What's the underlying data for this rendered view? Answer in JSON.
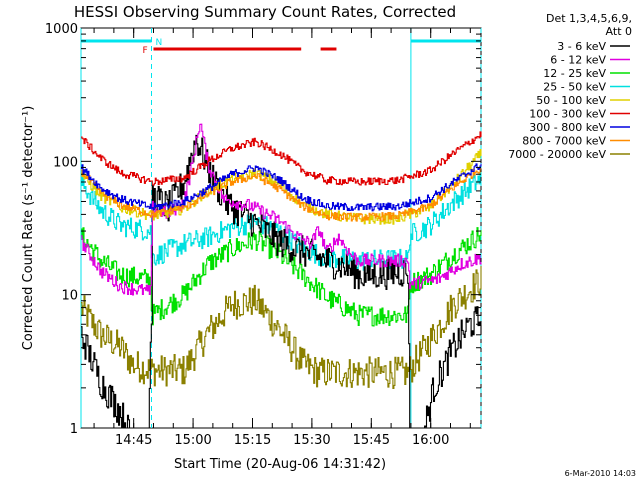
{
  "chart_data": {
    "type": "line",
    "title": "HESSI Observing Summary Count Rates, Corrected",
    "xlabel": "Start Time (20-Aug-06 14:31:42)",
    "ylabel": "Corrected Count Rate (s⁻¹ detector⁻¹)",
    "x_unit": "minutes after 14:31:42",
    "xlim": [
      0,
      101
    ],
    "ylim": [
      1,
      1000
    ],
    "y_scale": "log",
    "x_ticks": [
      {
        "label": "14:45",
        "value": 13.3
      },
      {
        "label": "15:00",
        "value": 28.3
      },
      {
        "label": "15:15",
        "value": 43.3
      },
      {
        "label": "15:30",
        "value": 58.3
      },
      {
        "label": "15:45",
        "value": 73.3
      },
      {
        "label": "16:00",
        "value": 88.3
      }
    ],
    "y_ticks": [
      {
        "label": "1",
        "value": 1
      },
      {
        "label": "10",
        "value": 10
      },
      {
        "label": "100",
        "value": 100
      },
      {
        "label": "1000",
        "value": 1000
      }
    ],
    "legend_header": [
      "Det 1,3,4,5,6,9,",
      "Att 0"
    ],
    "legend_position": "right",
    "date_stamp": "6-Mar-2010 14:03",
    "flags": {
      "N_label": "N",
      "F_label": "F",
      "N_segments": [
        [
          0,
          17.8
        ],
        [
          83.3,
          101
        ]
      ],
      "F_segments": [
        [
          18.3,
          55.6
        ],
        [
          60.5,
          64.5
        ]
      ],
      "N_color": "#00e5ee",
      "F_color": "#e00000"
    },
    "night_boundaries": [
      {
        "x": 0,
        "style": "solid"
      },
      {
        "x": 17.8,
        "style": "dashed"
      },
      {
        "x": 83.3,
        "style": "solid"
      },
      {
        "x": 101,
        "style": "dashed"
      }
    ],
    "series": [
      {
        "name": "3 - 6 keV",
        "color": "#000000",
        "noise": 0.12,
        "points": [
          [
            0,
            5
          ],
          [
            5,
            2.2
          ],
          [
            10,
            1.3
          ],
          [
            13,
            0.8
          ],
          [
            17,
            0.8
          ],
          [
            17.8,
            8
          ],
          [
            18,
            55
          ],
          [
            22,
            45
          ],
          [
            26,
            70
          ],
          [
            29,
            150
          ],
          [
            33,
            75
          ],
          [
            37,
            48
          ],
          [
            43,
            36
          ],
          [
            50,
            25
          ],
          [
            56,
            21
          ],
          [
            62,
            18
          ],
          [
            67,
            16
          ],
          [
            70,
            14
          ],
          [
            73,
            14
          ],
          [
            82.5,
            15
          ],
          [
            83,
            0.8
          ],
          [
            86,
            0.8
          ],
          [
            89,
            2
          ],
          [
            94,
            4
          ],
          [
            98,
            6
          ],
          [
            101,
            6.5
          ]
        ]
      },
      {
        "name": "6 - 12 keV",
        "color": "#e000e0",
        "noise": 0.05,
        "points": [
          [
            0,
            25
          ],
          [
            5,
            15
          ],
          [
            10,
            11.5
          ],
          [
            17.5,
            10.5
          ],
          [
            18,
            45
          ],
          [
            22,
            40
          ],
          [
            26,
            50
          ],
          [
            28,
            95
          ],
          [
            30,
            200
          ],
          [
            32,
            95
          ],
          [
            36,
            52
          ],
          [
            43,
            46
          ],
          [
            50,
            36
          ],
          [
            54,
            28
          ],
          [
            58,
            24
          ],
          [
            60,
            31
          ],
          [
            62,
            21
          ],
          [
            65,
            27
          ],
          [
            68,
            20
          ],
          [
            70,
            18
          ],
          [
            82.5,
            18
          ],
          [
            83,
            12
          ],
          [
            90,
            13
          ],
          [
            96,
            17
          ],
          [
            101,
            19
          ]
        ]
      },
      {
        "name": "12 - 25 keV",
        "color": "#00e000",
        "noise": 0.08,
        "points": [
          [
            0,
            28
          ],
          [
            5,
            18
          ],
          [
            10,
            14
          ],
          [
            17.5,
            13
          ],
          [
            17.8,
            7
          ],
          [
            26,
            10
          ],
          [
            32,
            17
          ],
          [
            38,
            22
          ],
          [
            44,
            26
          ],
          [
            50,
            20
          ],
          [
            56,
            14
          ],
          [
            62,
            9.5
          ],
          [
            70,
            7
          ],
          [
            82.5,
            7
          ],
          [
            83,
            12
          ],
          [
            88,
            14
          ],
          [
            94,
            20
          ],
          [
            101,
            29
          ]
        ]
      },
      {
        "name": "25 - 50 keV",
        "color": "#00e0e0",
        "noise": 0.08,
        "points": [
          [
            0,
            70
          ],
          [
            5,
            43
          ],
          [
            10,
            33
          ],
          [
            17.5,
            30
          ],
          [
            17.8,
            19
          ],
          [
            26,
            24
          ],
          [
            32,
            27
          ],
          [
            38,
            32
          ],
          [
            44,
            35
          ],
          [
            50,
            30
          ],
          [
            56,
            22
          ],
          [
            62,
            19
          ],
          [
            70,
            18
          ],
          [
            82.5,
            18.5
          ],
          [
            83,
            28
          ],
          [
            88,
            33
          ],
          [
            94,
            50
          ],
          [
            101,
            75
          ]
        ]
      },
      {
        "name": "50 - 100 keV",
        "color": "#e0d000",
        "noise": 0.04,
        "points": [
          [
            0,
            80
          ],
          [
            5,
            55
          ],
          [
            10,
            45
          ],
          [
            18,
            39
          ],
          [
            26,
            44
          ],
          [
            32,
            60
          ],
          [
            38,
            74
          ],
          [
            44,
            82
          ],
          [
            50,
            67
          ],
          [
            56,
            47
          ],
          [
            62,
            40
          ],
          [
            70,
            37
          ],
          [
            80,
            37
          ],
          [
            88,
            45
          ],
          [
            94,
            68
          ],
          [
            101,
            115
          ]
        ]
      },
      {
        "name": "100 - 300 keV",
        "color": "#e00000",
        "noise": 0.03,
        "points": [
          [
            0,
            150
          ],
          [
            5,
            105
          ],
          [
            10,
            82
          ],
          [
            18,
            70
          ],
          [
            26,
            75
          ],
          [
            32,
            100
          ],
          [
            38,
            125
          ],
          [
            44,
            140
          ],
          [
            50,
            115
          ],
          [
            56,
            85
          ],
          [
            62,
            72
          ],
          [
            70,
            70
          ],
          [
            80,
            72
          ],
          [
            88,
            85
          ],
          [
            94,
            115
          ],
          [
            101,
            160
          ]
        ]
      },
      {
        "name": "300 - 800 keV",
        "color": "#0000e0",
        "noise": 0.03,
        "points": [
          [
            0,
            90
          ],
          [
            5,
            63
          ],
          [
            10,
            52
          ],
          [
            18,
            45
          ],
          [
            26,
            50
          ],
          [
            32,
            62
          ],
          [
            38,
            80
          ],
          [
            44,
            90
          ],
          [
            50,
            73
          ],
          [
            56,
            53
          ],
          [
            62,
            46
          ],
          [
            70,
            45
          ],
          [
            80,
            46
          ],
          [
            88,
            53
          ],
          [
            94,
            70
          ],
          [
            101,
            95
          ]
        ]
      },
      {
        "name": "800 - 7000 keV",
        "color": "#ff8c00",
        "noise": 0.03,
        "points": [
          [
            0,
            85
          ],
          [
            5,
            58
          ],
          [
            10,
            47
          ],
          [
            18,
            40
          ],
          [
            26,
            45
          ],
          [
            32,
            57
          ],
          [
            38,
            70
          ],
          [
            44,
            78
          ],
          [
            50,
            62
          ],
          [
            56,
            46
          ],
          [
            62,
            39
          ],
          [
            70,
            38
          ],
          [
            80,
            39
          ],
          [
            88,
            46
          ],
          [
            94,
            64
          ],
          [
            101,
            90
          ]
        ]
      },
      {
        "name": "7000 - 20000 keV",
        "color": "#8b8000",
        "noise": 0.12,
        "points": [
          [
            0,
            8
          ],
          [
            5,
            5
          ],
          [
            10,
            4
          ],
          [
            13,
            3
          ],
          [
            17.8,
            2.7
          ],
          [
            26,
            2.7
          ],
          [
            32,
            5.2
          ],
          [
            38,
            8.5
          ],
          [
            44,
            9
          ],
          [
            50,
            5.5
          ],
          [
            56,
            3
          ],
          [
            60,
            2.6
          ],
          [
            70,
            2.6
          ],
          [
            82.5,
            2.6
          ],
          [
            88,
            4.5
          ],
          [
            94,
            8.5
          ],
          [
            101,
            13
          ]
        ]
      }
    ]
  }
}
